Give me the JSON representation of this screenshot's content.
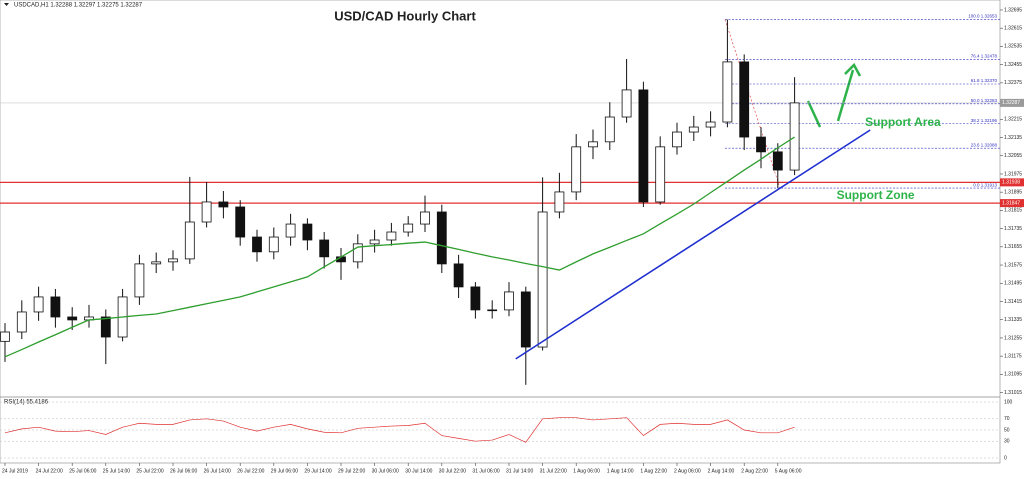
{
  "chart_data": {
    "type": "candlestick",
    "title": "USD/CAD Hourly Chart",
    "header": "USDCAD,H1 1.32288 1.32297 1.32275 1.32287",
    "categories": [
      "24 Jul 2019",
      null,
      "24 Jul 22:00",
      null,
      "25 Jul 06:00",
      null,
      "25 Jul 14:00",
      null,
      "25 Jul 22:00",
      null,
      "26 Jul 06:00",
      null,
      "26 Jul 14:00",
      null,
      "26 Jul 22:00",
      null,
      "29 Jul 06:00",
      null,
      "29 Jul 14:00",
      null,
      "29 Jul 22:00",
      null,
      "30 Jul 06:00",
      null,
      "30 Jul 14:00",
      null,
      "30 Jul 22:00",
      null,
      "31 Jul 06:00",
      null,
      "31 Jul 14:00",
      null,
      "31 Jul 22:00",
      null,
      "1 Aug 06:00",
      null,
      "1 Aug 14:00",
      null,
      "1 Aug 22:00",
      null,
      "2 Aug 06:00",
      null,
      "2 Aug 14:00",
      null,
      "2 Aug 22:00",
      null,
      "5 Aug 06:00",
      null
    ],
    "open": [
      1.3124,
      1.31281,
      1.31369,
      1.31435,
      1.31347,
      1.31334,
      1.31347,
      1.31259,
      1.31435,
      1.3158,
      1.31589,
      1.31602,
      1.31764,
      1.31852,
      1.3183,
      1.31698,
      1.31633,
      1.31698,
      1.31755,
      1.31685,
      1.31611,
      1.31589,
      1.31668,
      1.31685,
      1.3172,
      1.31755,
      1.31808,
      1.3158,
      1.31479,
      1.31378,
      1.31378,
      1.31457,
      1.31215,
      1.31808,
      1.31896,
      1.32094,
      1.32116,
      1.32225,
      1.32344,
      1.31852,
      1.32094,
      1.32159,
      1.32181,
      1.32203,
      1.32467,
      1.32137,
      1.32072,
      1.31992
    ],
    "high": [
      1.3132,
      1.3142,
      1.3148,
      1.3147,
      1.3139,
      1.314,
      1.3138,
      1.3147,
      1.3162,
      1.3163,
      1.3164,
      1.31962,
      1.3194,
      1.319,
      1.3186,
      1.3173,
      1.3174,
      1.318,
      1.3178,
      1.3172,
      1.3165,
      1.3171,
      1.3173,
      1.3176,
      1.3179,
      1.3188,
      1.3184,
      1.3162,
      1.315,
      1.3142,
      1.315,
      1.3148,
      1.3196,
      1.3198,
      1.3215,
      1.3217,
      1.3229,
      1.3248,
      1.3238,
      1.3214,
      1.322,
      1.3223,
      1.3225,
      1.32653,
      1.325,
      1.3218,
      1.3211,
      1.324
    ],
    "low": [
      1.3115,
      1.3125,
      1.3133,
      1.313,
      1.3129,
      1.313,
      1.3114,
      1.3124,
      1.314,
      1.3154,
      1.3155,
      1.3158,
      1.3174,
      1.3178,
      1.3166,
      1.3159,
      1.316,
      1.3166,
      1.3164,
      1.3156,
      1.3151,
      1.3156,
      1.3163,
      1.3166,
      1.317,
      1.3172,
      1.3154,
      1.3143,
      1.3134,
      1.3134,
      1.3135,
      1.31049,
      1.312,
      1.3178,
      1.3186,
      1.3204,
      1.3208,
      1.322,
      1.3183,
      1.3184,
      1.3206,
      1.3212,
      1.3214,
      1.3218,
      1.3208,
      1.32,
      1.31913,
      1.3197
    ],
    "close": [
      1.31281,
      1.31369,
      1.31435,
      1.31347,
      1.31334,
      1.31347,
      1.31259,
      1.31435,
      1.3158,
      1.31589,
      1.31602,
      1.31764,
      1.31852,
      1.3183,
      1.31698,
      1.31633,
      1.31698,
      1.31755,
      1.31685,
      1.31611,
      1.31589,
      1.31668,
      1.31685,
      1.3172,
      1.31755,
      1.31808,
      1.3158,
      1.31479,
      1.31378,
      1.31378,
      1.31457,
      1.31215,
      1.31808,
      1.31896,
      1.32094,
      1.32116,
      1.32225,
      1.32344,
      1.31852,
      1.32094,
      1.32159,
      1.32181,
      1.32203,
      1.32467,
      1.32137,
      1.32072,
      1.31992,
      1.32287
    ],
    "ma": {
      "color": "#2e9e2e",
      "values": [
        1.31172,
        1.31204,
        1.31237,
        1.31269,
        1.31302,
        1.31334,
        1.3134,
        1.31347,
        1.31354,
        1.3136,
        1.31375,
        1.3139,
        1.31405,
        1.3142,
        1.31435,
        1.31457,
        1.31479,
        1.31501,
        1.31523,
        1.31567,
        1.3161,
        1.31654,
        1.3166,
        1.31665,
        1.31671,
        1.31676,
        1.3166,
        1.31644,
        1.31627,
        1.31611,
        1.31597,
        1.31582,
        1.31568,
        1.31553,
        1.31589,
        1.31624,
        1.31653,
        1.31683,
        1.31712,
        1.31756,
        1.31799,
        1.31843,
        1.31893,
        1.31942,
        1.31992,
        1.3204,
        1.3209,
        1.32137
      ]
    },
    "ylim": [
      1.31,
      1.3273
    ],
    "yticks": [
      1.32695,
      1.32615,
      1.32535,
      1.32455,
      1.32375,
      1.32215,
      1.32135,
      1.32055,
      1.31975,
      1.31895,
      1.31815,
      1.31735,
      1.31655,
      1.31575,
      1.31495,
      1.31415,
      1.31335,
      1.31255,
      1.31175,
      1.31095,
      1.31015
    ],
    "current_price": {
      "value": 1.32287,
      "label": "1.32287",
      "color": "#9a9a9a"
    },
    "price_lines": [
      {
        "value": 1.31938,
        "label": "1.31938"
      },
      {
        "value": 1.31847,
        "label": "1.31847"
      }
    ],
    "price_line_color": "#e03030",
    "fib_levels": [
      {
        "value": 1.32653,
        "label": "100.0 1.32653"
      },
      {
        "value": 1.32478,
        "label": "76.4 1.32478"
      },
      {
        "value": 1.3237,
        "label": "61.8 1.32370"
      },
      {
        "value": 1.32283,
        "label": "50.0 1.32283"
      },
      {
        "value": 1.32196,
        "label": "38.2 1.32196"
      },
      {
        "value": 1.32088,
        "label": "23.6 1.32088"
      },
      {
        "value": 1.31913,
        "label": "0.0 1.31913"
      }
    ],
    "fib_color": "#3030c0",
    "trendline": {
      "x": [
        30.4,
        51.5
      ],
      "y": [
        1.31163,
        1.32168
      ],
      "color": "#2030d0"
    },
    "annotations": [
      {
        "text": "Support Area",
        "x": 51.2,
        "y": 1.322
      },
      {
        "text": "Support Zone",
        "x": 49.5,
        "y": 1.3188
      }
    ],
    "annotation_color": "#2db34a",
    "rsi": {
      "label": "RSI(14) 55.4186",
      "color": "#e03030",
      "ylim": [
        0,
        100
      ],
      "yticks": [
        100,
        70,
        50,
        30,
        0
      ],
      "values": [
        45,
        52,
        55,
        48,
        47,
        49,
        42,
        55,
        62,
        60,
        60,
        68,
        70,
        66,
        55,
        48,
        55,
        60,
        52,
        46,
        45,
        53,
        55,
        57,
        58,
        62,
        40,
        35,
        30,
        32,
        42,
        28,
        70,
        72,
        72,
        68,
        70,
        72,
        40,
        60,
        62,
        60,
        60,
        68,
        50,
        45,
        45,
        55
      ]
    }
  }
}
